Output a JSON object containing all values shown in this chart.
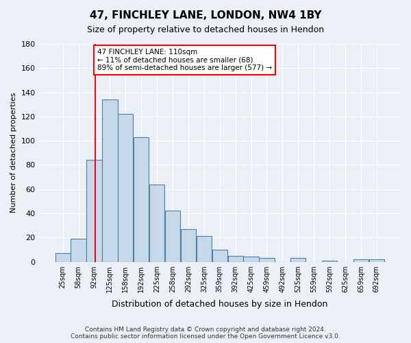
{
  "title1": "47, FINCHLEY LANE, LONDON, NW4 1BY",
  "title2": "Size of property relative to detached houses in Hendon",
  "xlabel": "Distribution of detached houses by size in Hendon",
  "ylabel": "Number of detached properties",
  "footnote": "Contains HM Land Registry data © Crown copyright and database right 2024.\nContains public sector information licensed under the Open Government Licence v3.0.",
  "bar_labels": [
    "25sqm",
    "58sqm",
    "92sqm",
    "125sqm",
    "158sqm",
    "192sqm",
    "225sqm",
    "258sqm",
    "292sqm",
    "325sqm",
    "359sqm",
    "392sqm",
    "425sqm",
    "459sqm",
    "492sqm",
    "525sqm",
    "559sqm",
    "592sqm",
    "625sqm",
    "659sqm",
    "692sqm"
  ],
  "bar_values": [
    7,
    19,
    84,
    134,
    122,
    103,
    64,
    42,
    27,
    21,
    10,
    5,
    4,
    3,
    0,
    3,
    0,
    1,
    0,
    2,
    2
  ],
  "bar_color": "#c6d9ea",
  "bar_edge_color": "#4f7fa0",
  "vline_color": "red",
  "annotation_title": "47 FINCHLEY LANE: 110sqm",
  "annotation_line2": "← 11% of detached houses are smaller (68)",
  "annotation_line3": "89% of semi-detached houses are larger (577) →",
  "annotation_box_color": "white",
  "annotation_box_edge": "red",
  "ylim": [
    0,
    180
  ],
  "yticks": [
    0,
    20,
    40,
    60,
    80,
    100,
    120,
    140,
    160,
    180
  ],
  "background_color": "#eaf0f6"
}
